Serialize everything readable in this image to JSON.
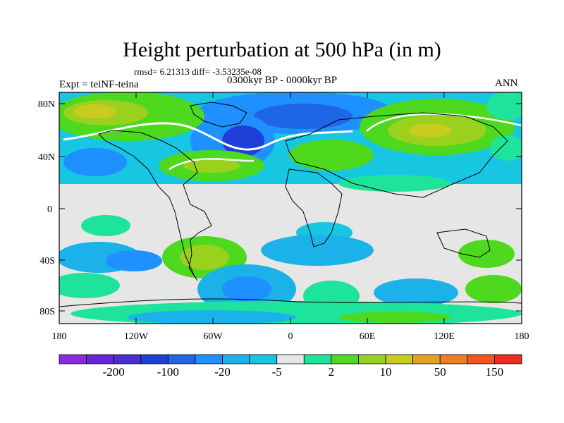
{
  "title": "Height perturbation at 500 hPa (in m)",
  "stats": "rmsd= 6.21313 diff= -3.53235e-08",
  "experiment": "Expt = teiNF-teina",
  "period": "0300kyr BP - 0000kyr BP",
  "season": "ANN",
  "map": {
    "lat_labels": [
      "80N",
      "40N",
      "0",
      "40S",
      "80S"
    ],
    "lon_labels": [
      "180",
      "120W",
      "60W",
      "0",
      "60E",
      "120E",
      "180"
    ]
  },
  "colorbar": {
    "colors": [
      "#8a2be2",
      "#6a24dc",
      "#4a2cd8",
      "#1f3fd9",
      "#1e66e6",
      "#1e90ff",
      "#1ab2e8",
      "#17c6e0",
      "#e6e6e6",
      "#1ee39a",
      "#4ed81e",
      "#9ad11e",
      "#c8cc1e",
      "#e3a21e",
      "#ee7f1e",
      "#f2561e",
      "#ee2d1e"
    ],
    "labels": [
      "-200",
      "-100",
      "-20",
      "-5",
      "2",
      "10",
      "50",
      "150"
    ]
  }
}
